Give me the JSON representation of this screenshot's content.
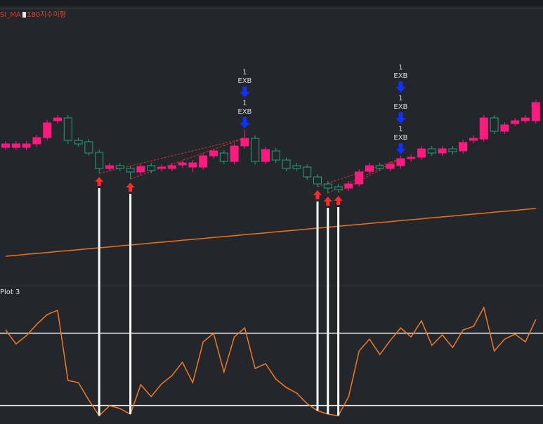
{
  "chart_data": [
    {
      "type": "candlestick",
      "title": "SI_MA",
      "up_color": "#ff1a7f",
      "down_color": "#22a07a",
      "open": [
        195,
        195,
        195,
        200,
        209,
        233,
        237,
        205,
        203,
        188,
        165,
        169,
        165,
        160,
        169,
        165,
        165,
        170,
        167,
        167,
        183,
        187,
        175,
        197,
        208,
        175,
        190,
        177,
        169,
        167,
        153,
        143,
        139,
        137,
        143,
        161,
        169,
        165,
        169,
        179,
        181,
        193,
        187,
        193,
        190,
        205,
        207,
        237,
        218,
        229,
        233,
        233
      ],
      "close": [
        200,
        200,
        200,
        209,
        230,
        237,
        205,
        200,
        187,
        165,
        169,
        165,
        160,
        168,
        162,
        167,
        169,
        173,
        173,
        183,
        190,
        175,
        197,
        208,
        175,
        192,
        177,
        165,
        165,
        153,
        143,
        137,
        135,
        143,
        160,
        169,
        165,
        171,
        179,
        181,
        193,
        187,
        193,
        189,
        202,
        208,
        237,
        218,
        227,
        233,
        237,
        259
      ],
      "high": [
        204,
        204,
        204,
        213,
        234,
        241,
        241,
        209,
        207,
        192,
        173,
        173,
        169,
        172,
        173,
        171,
        173,
        177,
        177,
        187,
        193,
        191,
        201,
        220,
        212,
        196,
        194,
        181,
        173,
        171,
        157,
        147,
        143,
        147,
        164,
        173,
        173,
        175,
        183,
        185,
        197,
        197,
        197,
        197,
        206,
        212,
        241,
        241,
        231,
        237,
        241,
        263
      ],
      "low": [
        191,
        191,
        191,
        196,
        205,
        229,
        200,
        196,
        183,
        158,
        161,
        161,
        150,
        156,
        158,
        161,
        161,
        166,
        160,
        163,
        179,
        171,
        171,
        193,
        171,
        171,
        173,
        161,
        161,
        149,
        139,
        130,
        131,
        133,
        139,
        157,
        161,
        161,
        165,
        175,
        177,
        183,
        183,
        185,
        186,
        201,
        203,
        214,
        214,
        225,
        229,
        229
      ],
      "series": [
        {
          "name": "180지수이평",
          "color": "#f07020",
          "values": [
            40,
            41.3,
            42.7,
            44,
            45.3,
            46.7,
            48,
            49.3,
            50.7,
            52,
            53.3,
            54.7,
            56,
            57.3,
            58.7,
            60,
            61.3,
            62.7,
            64,
            65.3,
            66.7,
            68,
            69.3,
            70.7,
            72,
            73.3,
            74.7,
            76,
            77.3,
            78.7,
            80,
            81.3,
            82.7,
            84,
            85.3,
            86.7,
            88,
            89.3,
            90.7,
            92,
            93.3,
            94.7,
            96,
            97.3,
            98.7,
            100,
            101.3,
            102.7,
            104,
            105.3,
            106.7,
            108
          ]
        }
      ],
      "entry_signals": [
        9,
        12,
        30,
        31,
        32
      ],
      "exit_signals": [
        {
          "candle": 23,
          "count": 1,
          "label": "EXB"
        },
        {
          "candle": 23,
          "count": 1,
          "label": "EXB"
        },
        {
          "candle": 38,
          "count": 1,
          "label": "EXB"
        },
        {
          "candle": 38,
          "count": 1,
          "label": "EXB"
        },
        {
          "candle": 38,
          "count": 1,
          "label": "EXB"
        }
      ],
      "ylim": [
        0,
        400
      ]
    },
    {
      "type": "line",
      "title": "Plot 3",
      "series": [
        {
          "color": "#f07a25",
          "values": [
            82.7,
            71.1,
            78.0,
            87.4,
            95.5,
            99.0,
            40.8,
            39.0,
            24.5,
            11.6,
            19.8,
            17.5,
            12.8,
            37.3,
            27.4,
            37.9,
            44.8,
            55.9,
            39.0,
            72.8,
            79.8,
            47.8,
            76.9,
            84.4,
            50.7,
            54.7,
            41.9,
            34.9,
            30.3,
            21.5,
            15.7,
            12.8,
            11.6,
            27.4,
            65.2,
            75.1,
            62.3,
            74.0,
            84.4,
            76.9,
            90.3,
            69.9,
            78.6,
            68.1,
            82.7,
            85.6,
            101.3,
            65.2,
            75.1,
            79.2,
            72.8,
            91.4
          ]
        }
      ],
      "levels": [
        80,
        20
      ],
      "ylim": [
        0,
        100
      ]
    }
  ]
}
